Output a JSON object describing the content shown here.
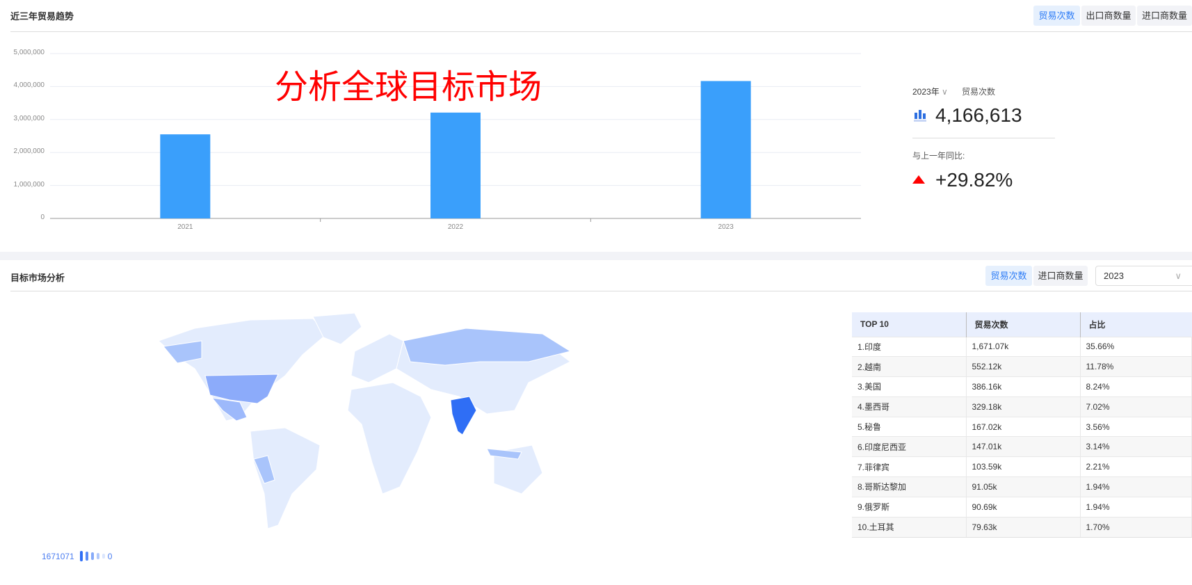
{
  "trend": {
    "title": "近三年贸易趋势",
    "tabs": [
      "贸易次数",
      "出口商数量",
      "进口商数量"
    ],
    "active_tab": 0
  },
  "overlay_text": "分析全球目标市场",
  "summary": {
    "year": "2023年",
    "metric": "贸易次数",
    "value": "4,166,613",
    "compare_label": "与上一年同比:",
    "change": "+29.82%",
    "change_color": "#ff0000",
    "icon": "bar-chart-icon"
  },
  "chart_data": {
    "type": "bar",
    "categories": [
      "2021",
      "2022",
      "2023"
    ],
    "values": [
      2550000,
      3210000,
      4166613
    ],
    "ylim": [
      0,
      5000000
    ],
    "yticks": [
      "0",
      "1,000,000",
      "2,000,000",
      "3,000,000",
      "4,000,000",
      "5,000,000"
    ],
    "grid": true,
    "color": "#3a9ffb"
  },
  "market": {
    "title": "目标市场分析",
    "tabs": [
      "贸易次数",
      "进口商数量"
    ],
    "active_tab": 0,
    "year_select": "2023",
    "legend": {
      "max": "1671071",
      "min": "0"
    },
    "table": {
      "headers": [
        "TOP 10",
        "贸易次数",
        "占比"
      ],
      "rows": [
        [
          "1.印度",
          "1,671.07k",
          "35.66%"
        ],
        [
          "2.越南",
          "552.12k",
          "11.78%"
        ],
        [
          "3.美国",
          "386.16k",
          "8.24%"
        ],
        [
          "4.墨西哥",
          "329.18k",
          "7.02%"
        ],
        [
          "5.秘鲁",
          "167.02k",
          "3.56%"
        ],
        [
          "6.印度尼西亚",
          "147.01k",
          "3.14%"
        ],
        [
          "7.菲律宾",
          "103.59k",
          "2.21%"
        ],
        [
          "8.哥斯达黎加",
          "91.05k",
          "1.94%"
        ],
        [
          "9.俄罗斯",
          "90.69k",
          "1.94%"
        ],
        [
          "10.土耳其",
          "79.63k",
          "1.70%"
        ]
      ]
    }
  }
}
